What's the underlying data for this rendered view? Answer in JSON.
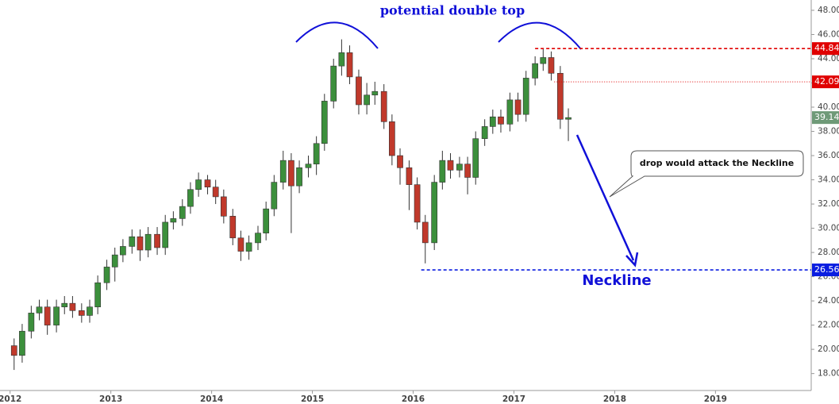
{
  "chart_data": {
    "type": "candlestick",
    "title": "potential double top",
    "annotations": [
      "Neckline",
      "drop would attack the Neckline"
    ],
    "x": [
      2012.04,
      2012.12,
      2012.21,
      2012.29,
      2012.37,
      2012.46,
      2012.54,
      2012.62,
      2012.71,
      2012.79,
      2012.87,
      2012.96,
      2013.04,
      2013.12,
      2013.21,
      2013.29,
      2013.37,
      2013.46,
      2013.54,
      2013.62,
      2013.71,
      2013.79,
      2013.87,
      2013.96,
      2014.04,
      2014.12,
      2014.21,
      2014.29,
      2014.37,
      2014.46,
      2014.54,
      2014.62,
      2014.71,
      2014.79,
      2014.87,
      2014.96,
      2015.04,
      2015.12,
      2015.21,
      2015.29,
      2015.37,
      2015.46,
      2015.54,
      2015.62,
      2015.71,
      2015.79,
      2015.87,
      2015.96,
      2016.04,
      2016.12,
      2016.21,
      2016.29,
      2016.37,
      2016.46,
      2016.54,
      2016.62,
      2016.71,
      2016.79,
      2016.87,
      2016.96,
      2017.04,
      2017.12,
      2017.21,
      2017.29,
      2017.37,
      2017.46,
      2017.54
    ],
    "open": [
      20.3,
      19.5,
      21.5,
      23,
      23.5,
      22,
      23.5,
      23.8,
      23.2,
      22.8,
      23.5,
      25.5,
      26.8,
      27.8,
      28.5,
      29.3,
      28.2,
      29.5,
      28.4,
      30.5,
      30.8,
      31.8,
      33.2,
      34,
      33.4,
      32.6,
      31,
      29.2,
      28.1,
      28.8,
      29.6,
      31.6,
      33.8,
      35.6,
      33.5,
      35,
      35.3,
      37,
      40.5,
      43.4,
      44.5,
      42.5,
      40.2,
      41,
      41.3,
      38.8,
      36,
      35,
      33.6,
      30.5,
      28.8,
      33.8,
      35.6,
      34.8,
      35.3,
      34.2,
      37.4,
      38.4,
      39.2,
      38.6,
      40.6,
      39.4,
      42.4,
      43.6,
      44.1,
      42.8,
      39
    ],
    "high": [
      20.9,
      22.1,
      23.6,
      24.1,
      24.1,
      24.1,
      24.4,
      24.4,
      23.8,
      24.1,
      26.1,
      27.4,
      28.4,
      29.1,
      29.9,
      29.9,
      30.1,
      30.1,
      31.1,
      31.4,
      32.4,
      33.8,
      34.6,
      34.4,
      34,
      33.2,
      31.6,
      29.8,
      29.4,
      30.2,
      32.2,
      34.4,
      36.4,
      36.2,
      35.6,
      36,
      37.6,
      41.1,
      44,
      45.6,
      45.1,
      43.1,
      42,
      42.1,
      41.9,
      39.4,
      36.6,
      35.6,
      34.2,
      31.1,
      34.4,
      36.4,
      36.2,
      35.9,
      35.9,
      38,
      39,
      39.8,
      39.8,
      41.2,
      41.2,
      43,
      44.2,
      44.84,
      44.6,
      43.4,
      39.9
    ],
    "low": [
      18.3,
      18.9,
      20.9,
      22.4,
      21.2,
      21.4,
      22.9,
      22.6,
      22.2,
      22.2,
      22.9,
      24.9,
      25.6,
      27.2,
      27.9,
      27.3,
      27.6,
      27.8,
      27.8,
      29.9,
      30.2,
      31.2,
      32.6,
      32.8,
      32,
      30.4,
      28.6,
      27.3,
      27.4,
      28.2,
      29,
      31,
      33.2,
      29.6,
      32.9,
      34.2,
      34.4,
      36.4,
      39.9,
      42.6,
      41.9,
      39.4,
      39.4,
      40.2,
      38.2,
      35.2,
      33.6,
      31.5,
      29.9,
      27.1,
      28.2,
      33.2,
      34.1,
      34.2,
      32.8,
      33.6,
      36.8,
      37.8,
      37.9,
      38,
      38.8,
      38.8,
      41.8,
      43,
      42.2,
      38.2,
      37.2
    ],
    "close": [
      19.5,
      21.5,
      23,
      23.5,
      22,
      23.5,
      23.8,
      23.2,
      22.8,
      23.5,
      25.5,
      26.8,
      27.8,
      28.5,
      29.3,
      28.2,
      29.5,
      28.4,
      30.5,
      30.8,
      31.8,
      33.2,
      34,
      33.4,
      32.6,
      31,
      29.2,
      28.1,
      28.8,
      29.6,
      31.6,
      33.8,
      35.6,
      33.5,
      35,
      35.3,
      37,
      40.5,
      43.4,
      44.5,
      42.5,
      40.2,
      41,
      41.3,
      38.8,
      36,
      35,
      33.6,
      30.5,
      28.8,
      33.8,
      35.6,
      34.8,
      35.3,
      34.2,
      37.4,
      38.4,
      39.2,
      38.6,
      40.6,
      39.4,
      42.4,
      43.6,
      44.1,
      42.8,
      39,
      39.14
    ],
    "up_color": "#3c8f3c",
    "down_color": "#c0392b",
    "xlim": [
      2011.9,
      2019.95
    ],
    "xticks": [
      2012,
      2013,
      2014,
      2015,
      2016,
      2017,
      2018,
      2019
    ],
    "ylim": [
      16.6,
      48.85
    ],
    "yticks": [
      {
        "value": 18,
        "label": "18.00"
      },
      {
        "value": 20,
        "label": "20.00"
      },
      {
        "value": 22,
        "label": "22.00"
      },
      {
        "value": 24,
        "label": "24.00"
      },
      {
        "value": 26,
        "label": "26.00"
      },
      {
        "value": 28,
        "label": "28.00"
      },
      {
        "value": 30,
        "label": "30.00"
      },
      {
        "value": 32,
        "label": "32.00"
      },
      {
        "value": 34,
        "label": "34.00"
      },
      {
        "value": 36,
        "label": "36.00"
      },
      {
        "value": 38,
        "label": "38.00"
      },
      {
        "value": 40,
        "label": "40.00"
      },
      {
        "value": 42,
        "label": "42.00"
      },
      {
        "value": 44,
        "label": "44.00"
      },
      {
        "value": 46,
        "label": "46.00"
      },
      {
        "value": 48,
        "label": "48.00"
      }
    ],
    "grid": false,
    "levels": [
      {
        "value": 44.84,
        "color": "#e00000",
        "style": "dashed",
        "start": 2017.21
      },
      {
        "value": 42.09,
        "color": "#e00000",
        "style": "dotted",
        "start": 2017.4
      },
      {
        "value": 39.14,
        "color": "#6f9a78",
        "style": "none",
        "start": 2017.54
      },
      {
        "value": 26.56,
        "color": "#0a1de0",
        "style": "dashed",
        "start": 2016.08
      }
    ]
  }
}
